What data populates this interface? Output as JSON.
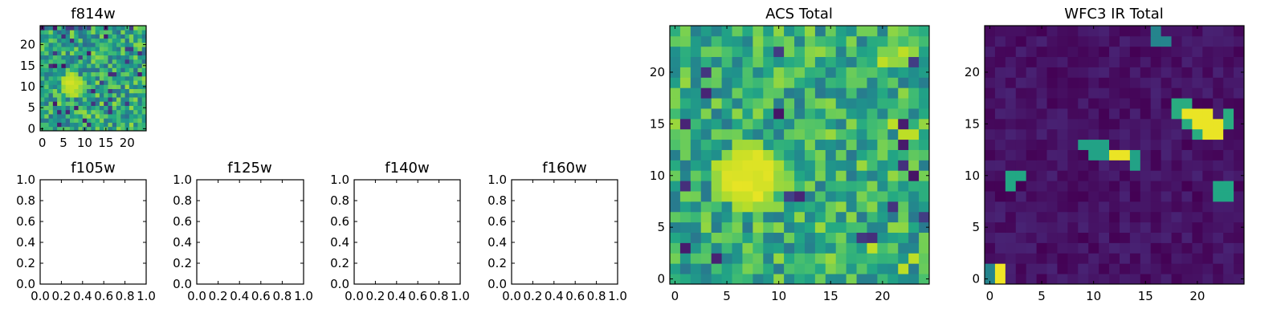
{
  "chart_data": [
    {
      "type": "heatmap",
      "title": "f814w",
      "xlim": [
        -0.5,
        24.5
      ],
      "ylim": [
        -0.5,
        24.5
      ],
      "xticks": [
        0,
        5,
        10,
        15,
        20
      ],
      "yticks": [
        0,
        5,
        10,
        15,
        20
      ],
      "colormap": "viridis",
      "grid": false,
      "features": [
        {
          "kind": "blob",
          "x": 7,
          "y": 10.5,
          "radius": 1.8,
          "level": 0.95
        },
        {
          "kind": "noise",
          "level_range": [
            0.35,
            0.85
          ],
          "dark_pixel_fraction": 0.06
        }
      ]
    },
    {
      "type": "heatmap",
      "title": "f105w",
      "xlim": [
        0.0,
        1.0
      ],
      "ylim": [
        0.0,
        1.0
      ],
      "xticks": [
        "0.0",
        "0.2",
        "0.4",
        "0.6",
        "0.8",
        "1.0"
      ],
      "yticks": [
        "0.0",
        "0.2",
        "0.4",
        "0.6",
        "0.8",
        "1.0"
      ],
      "empty": true
    },
    {
      "type": "heatmap",
      "title": "f125w",
      "xlim": [
        0.0,
        1.0
      ],
      "ylim": [
        0.0,
        1.0
      ],
      "xticks": [
        "0.0",
        "0.2",
        "0.4",
        "0.6",
        "0.8",
        "1.0"
      ],
      "yticks": [
        "0.0",
        "0.2",
        "0.4",
        "0.6",
        "0.8",
        "1.0"
      ],
      "empty": true
    },
    {
      "type": "heatmap",
      "title": "f140w",
      "xlim": [
        0.0,
        1.0
      ],
      "ylim": [
        0.0,
        1.0
      ],
      "xticks": [
        "0.0",
        "0.2",
        "0.4",
        "0.6",
        "0.8",
        "1.0"
      ],
      "yticks": [
        "0.0",
        "0.2",
        "0.4",
        "0.6",
        "0.8",
        "1.0"
      ],
      "empty": true
    },
    {
      "type": "heatmap",
      "title": "f160w",
      "xlim": [
        0.0,
        1.0
      ],
      "ylim": [
        0.0,
        1.0
      ],
      "xticks": [
        "0.0",
        "0.2",
        "0.4",
        "0.6",
        "0.8",
        "1.0"
      ],
      "yticks": [
        "0.0",
        "0.2",
        "0.4",
        "0.6",
        "0.8",
        "1.0"
      ],
      "empty": true
    },
    {
      "type": "heatmap",
      "title": "ACS Total",
      "xlim": [
        -0.5,
        24.5
      ],
      "ylim": [
        -0.5,
        24.5
      ],
      "xticks": [
        0,
        5,
        10,
        15,
        20
      ],
      "yticks": [
        0,
        5,
        10,
        15,
        20
      ],
      "colormap": "viridis",
      "grid": false,
      "features": [
        {
          "kind": "blob",
          "x": 7,
          "y": 10,
          "radius": 2.3,
          "level": 0.97
        },
        {
          "kind": "hot_pixels",
          "points": [
            [
              22,
              14
            ],
            [
              23,
              14
            ],
            [
              21,
              15
            ],
            [
              22,
              22
            ],
            [
              20,
              21
            ],
            [
              19,
              3
            ],
            [
              23,
              2
            ],
            [
              22,
              1
            ]
          ],
          "level": 0.9
        },
        {
          "kind": "noise",
          "level_range": [
            0.4,
            0.85
          ],
          "dark_pixel_fraction": 0.05
        }
      ]
    },
    {
      "type": "heatmap",
      "title": "WFC3 IR Total",
      "xlim": [
        -0.5,
        24.5
      ],
      "ylim": [
        -0.5,
        24.5
      ],
      "xticks": [
        0,
        5,
        10,
        15,
        20
      ],
      "yticks": [
        0,
        5,
        10,
        15,
        20
      ],
      "colormap": "viridis",
      "grid": false,
      "features": [
        {
          "kind": "cells",
          "points": [
            [
              19,
              16
            ],
            [
              20,
              16
            ],
            [
              21,
              16
            ],
            [
              20,
              15
            ],
            [
              21,
              15
            ],
            [
              22,
              15
            ],
            [
              21,
              14
            ],
            [
              22,
              14
            ]
          ],
          "level": 0.97
        },
        {
          "kind": "cells",
          "points": [
            [
              18,
              17
            ],
            [
              19,
              17
            ],
            [
              23,
              16
            ],
            [
              18,
              16
            ],
            [
              20,
              14
            ],
            [
              19,
              15
            ],
            [
              23,
              15
            ]
          ],
          "level": 0.62
        },
        {
          "kind": "cells",
          "points": [
            [
              12,
              12
            ],
            [
              13,
              12
            ]
          ],
          "level": 0.97
        },
        {
          "kind": "cells",
          "points": [
            [
              10,
              13
            ],
            [
              11,
              13
            ],
            [
              14,
              12
            ],
            [
              10,
              12
            ],
            [
              14,
              11
            ],
            [
              9,
              13
            ],
            [
              11,
              12
            ]
          ],
          "level": 0.58
        },
        {
          "kind": "cells",
          "points": [
            [
              2,
              10
            ],
            [
              3,
              10
            ],
            [
              2,
              9
            ],
            [
              22,
              9
            ],
            [
              22,
              8
            ],
            [
              23,
              8
            ],
            [
              23,
              9
            ]
          ],
          "level": 0.6
        },
        {
          "kind": "cells",
          "points": [
            [
              1,
              0
            ],
            [
              1,
              1
            ]
          ],
          "level": 0.98
        },
        {
          "kind": "cells",
          "points": [
            [
              0,
              1
            ],
            [
              0,
              0
            ],
            [
              16,
              24
            ],
            [
              17,
              23
            ],
            [
              16,
              23
            ]
          ],
          "level": 0.45
        },
        {
          "kind": "background",
          "level_range": [
            0.0,
            0.1
          ]
        }
      ]
    }
  ]
}
